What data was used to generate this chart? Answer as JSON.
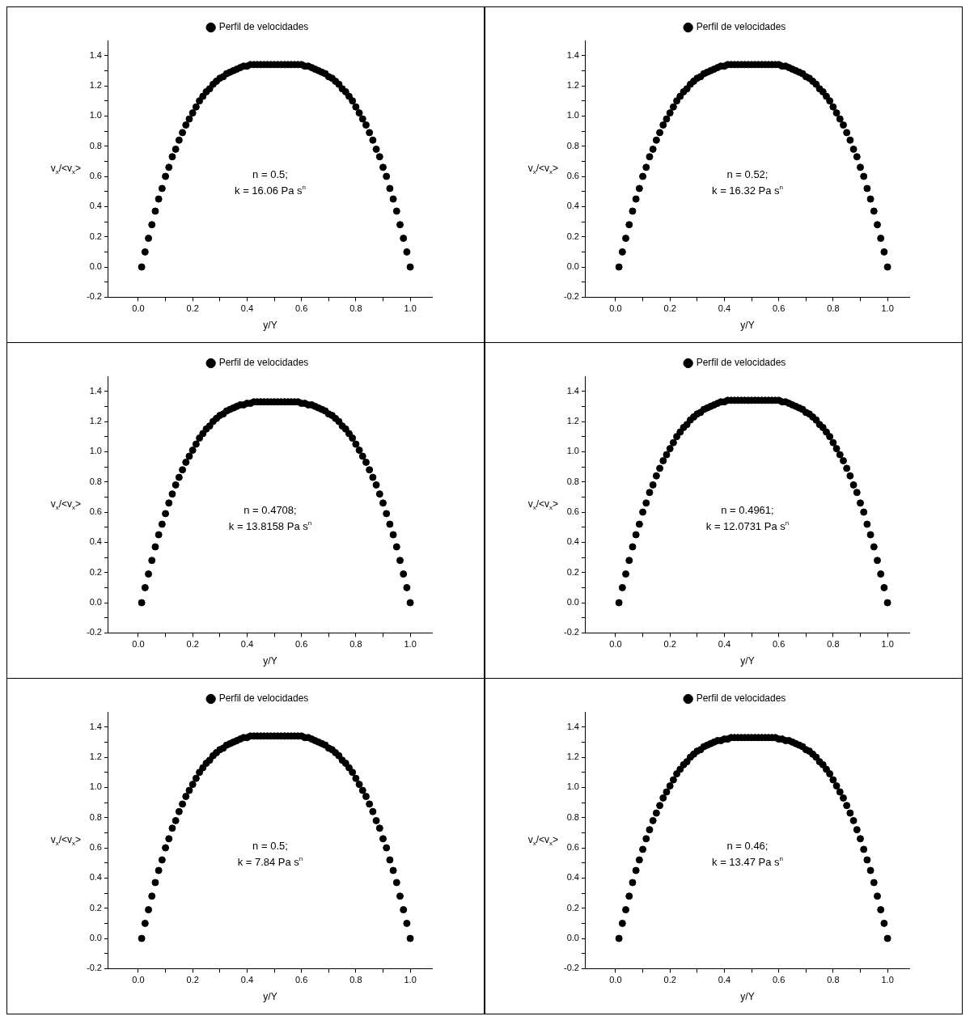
{
  "chart_data": [
    {
      "type": "scatter",
      "legend": "top",
      "marker": "circle",
      "xlabel": "y/Y",
      "ylabel": "v$_{x}$/<v$_{x}$>",
      "annotations": [
        "n = 0.5;",
        "k = 16.06 Pa s$^{n}$"
      ],
      "xlim": [
        -0.11,
        1.08
      ],
      "ylim": [
        -0.2,
        1.5
      ],
      "xticks": [
        {
          "value": 0,
          "label": "0.0"
        },
        {
          "value": 0.1,
          "label": null
        },
        0.2,
        {
          "value": 0.3,
          "label": null
        },
        0.4,
        {
          "value": 0.5,
          "label": null
        },
        0.6,
        {
          "value": 0.7,
          "label": null
        },
        0.8,
        {
          "value": 0.9,
          "label": null
        },
        {
          "value": 1,
          "label": "1.0"
        }
      ],
      "yticks": [
        -0.2,
        {
          "value": -0.1,
          "label": null
        },
        {
          "value": 0,
          "label": "0.0"
        },
        {
          "value": 0.1,
          "label": null
        },
        0.2,
        {
          "value": 0.3,
          "label": null
        },
        0.4,
        {
          "value": 0.5,
          "label": null
        },
        0.6,
        {
          "value": 0.7,
          "label": null
        },
        0.8,
        {
          "value": 0.9,
          "label": null
        },
        {
          "value": 1,
          "label": "1.0"
        },
        {
          "value": 1.1,
          "label": null
        },
        1.2,
        {
          "value": 1.3,
          "label": null
        },
        1.4
      ],
      "x": [
        0.0125,
        0.025,
        0.0375,
        0.05,
        0.0625,
        0.075,
        0.0875,
        0.1,
        0.1125,
        0.125,
        0.1375,
        0.15,
        0.1625,
        0.175,
        0.1875,
        0.2,
        0.2125,
        0.225,
        0.2375,
        0.25,
        0.2625,
        0.275,
        0.2875,
        0.3,
        0.3125,
        0.325,
        0.3375,
        0.35,
        0.3625,
        0.375,
        0.3875,
        0.4,
        0.4125,
        0.425,
        0.4375,
        0.45,
        0.4625,
        0.475,
        0.4875,
        0.5,
        0.5125,
        0.525,
        0.5375,
        0.55,
        0.5625,
        0.575,
        0.5875,
        0.6,
        0.6125,
        0.625,
        0.6375,
        0.65,
        0.6625,
        0.675,
        0.6875,
        0.7,
        0.7125,
        0.725,
        0.7375,
        0.75,
        0.7625,
        0.775,
        0.7875,
        0.8,
        0.8125,
        0.825,
        0.8375,
        0.85,
        0.8625,
        0.875,
        0.8875,
        0.9,
        0.9125,
        0.925,
        0.9375,
        0.95,
        0.9625,
        0.975,
        0.9875,
        1
      ],
      "series": [
        {
          "name": "Perfil de velocidades",
          "color": "#000000",
          "values": [
            0,
            0.1,
            0.19,
            0.28,
            0.37,
            0.45,
            0.52,
            0.6,
            0.66,
            0.73,
            0.78,
            0.84,
            0.89,
            0.94,
            0.98,
            1.02,
            1.06,
            1.1,
            1.13,
            1.16,
            1.18,
            1.21,
            1.23,
            1.25,
            1.26,
            1.28,
            1.29,
            1.3,
            1.31,
            1.32,
            1.33,
            1.33,
            1.34,
            1.34,
            1.34,
            1.34,
            1.34,
            1.34,
            1.34,
            1.34,
            1.34,
            1.34,
            1.34,
            1.34,
            1.34,
            1.34,
            1.34,
            1.34,
            1.33,
            1.33,
            1.32,
            1.31,
            1.3,
            1.29,
            1.28,
            1.26,
            1.25,
            1.23,
            1.21,
            1.18,
            1.16,
            1.13,
            1.1,
            1.06,
            1.02,
            0.98,
            0.94,
            0.89,
            0.84,
            0.78,
            0.73,
            0.66,
            0.6,
            0.52,
            0.45,
            0.37,
            0.28,
            0.19,
            0.1,
            0
          ]
        }
      ]
    },
    {
      "type": "scatter",
      "legend": "top",
      "marker": "circle",
      "xlabel": "y/Y",
      "ylabel": "v$_{x}$/<v$_{x}$>",
      "annotations": [
        "n = 0.52;",
        "k = 16.32 Pa s$^{n}$"
      ],
      "xlim": [
        -0.11,
        1.08
      ],
      "ylim": [
        -0.2,
        1.5
      ],
      "xticks": [
        {
          "value": 0,
          "label": "0.0"
        },
        {
          "value": 0.1,
          "label": null
        },
        0.2,
        {
          "value": 0.3,
          "label": null
        },
        0.4,
        {
          "value": 0.5,
          "label": null
        },
        0.6,
        {
          "value": 0.7,
          "label": null
        },
        0.8,
        {
          "value": 0.9,
          "label": null
        },
        {
          "value": 1,
          "label": "1.0"
        }
      ],
      "yticks": [
        -0.2,
        {
          "value": -0.1,
          "label": null
        },
        {
          "value": 0,
          "label": "0.0"
        },
        {
          "value": 0.1,
          "label": null
        },
        0.2,
        {
          "value": 0.3,
          "label": null
        },
        0.4,
        {
          "value": 0.5,
          "label": null
        },
        0.6,
        {
          "value": 0.7,
          "label": null
        },
        0.8,
        {
          "value": 0.9,
          "label": null
        },
        {
          "value": 1,
          "label": "1.0"
        },
        {
          "value": 1.1,
          "label": null
        },
        1.2,
        {
          "value": 1.3,
          "label": null
        },
        1.4
      ],
      "x": [
        0.0125,
        0.025,
        0.0375,
        0.05,
        0.0625,
        0.075,
        0.0875,
        0.1,
        0.1125,
        0.125,
        0.1375,
        0.15,
        0.1625,
        0.175,
        0.1875,
        0.2,
        0.2125,
        0.225,
        0.2375,
        0.25,
        0.2625,
        0.275,
        0.2875,
        0.3,
        0.3125,
        0.325,
        0.3375,
        0.35,
        0.3625,
        0.375,
        0.3875,
        0.4,
        0.4125,
        0.425,
        0.4375,
        0.45,
        0.4625,
        0.475,
        0.4875,
        0.5,
        0.5125,
        0.525,
        0.5375,
        0.55,
        0.5625,
        0.575,
        0.5875,
        0.6,
        0.6125,
        0.625,
        0.6375,
        0.65,
        0.6625,
        0.675,
        0.6875,
        0.7,
        0.7125,
        0.725,
        0.7375,
        0.75,
        0.7625,
        0.775,
        0.7875,
        0.8,
        0.8125,
        0.825,
        0.8375,
        0.85,
        0.8625,
        0.875,
        0.8875,
        0.9,
        0.9125,
        0.925,
        0.9375,
        0.95,
        0.9625,
        0.975,
        0.9875,
        1
      ],
      "series": [
        {
          "name": "Perfil de velocidades",
          "color": "#000000",
          "values": [
            0,
            0.1,
            0.19,
            0.28,
            0.37,
            0.45,
            0.52,
            0.6,
            0.66,
            0.73,
            0.78,
            0.84,
            0.89,
            0.94,
            0.98,
            1.02,
            1.06,
            1.1,
            1.13,
            1.16,
            1.18,
            1.21,
            1.23,
            1.25,
            1.26,
            1.28,
            1.29,
            1.3,
            1.31,
            1.32,
            1.33,
            1.33,
            1.34,
            1.34,
            1.34,
            1.34,
            1.34,
            1.34,
            1.34,
            1.34,
            1.34,
            1.34,
            1.34,
            1.34,
            1.34,
            1.34,
            1.34,
            1.34,
            1.33,
            1.33,
            1.32,
            1.31,
            1.3,
            1.29,
            1.28,
            1.26,
            1.25,
            1.23,
            1.21,
            1.18,
            1.16,
            1.13,
            1.1,
            1.06,
            1.02,
            0.98,
            0.94,
            0.89,
            0.84,
            0.78,
            0.73,
            0.66,
            0.6,
            0.52,
            0.45,
            0.37,
            0.28,
            0.19,
            0.1,
            0
          ]
        }
      ]
    },
    {
      "type": "scatter",
      "legend": "top",
      "marker": "circle",
      "xlabel": "y/Y",
      "ylabel": "v$_{x}$/<v$_{x}$>",
      "annotations": [
        "n = 0.4708;",
        "k = 13.8158 Pa s$^{n}$"
      ],
      "xlim": [
        -0.11,
        1.08
      ],
      "ylim": [
        -0.2,
        1.5
      ],
      "xticks": [
        {
          "value": 0,
          "label": "0.0"
        },
        {
          "value": 0.1,
          "label": null
        },
        0.2,
        {
          "value": 0.3,
          "label": null
        },
        0.4,
        {
          "value": 0.5,
          "label": null
        },
        0.6,
        {
          "value": 0.7,
          "label": null
        },
        0.8,
        {
          "value": 0.9,
          "label": null
        },
        {
          "value": 1,
          "label": "1.0"
        }
      ],
      "yticks": [
        -0.2,
        {
          "value": -0.1,
          "label": null
        },
        {
          "value": 0,
          "label": "0.0"
        },
        {
          "value": 0.1,
          "label": null
        },
        0.2,
        {
          "value": 0.3,
          "label": null
        },
        0.4,
        {
          "value": 0.5,
          "label": null
        },
        0.6,
        {
          "value": 0.7,
          "label": null
        },
        0.8,
        {
          "value": 0.9,
          "label": null
        },
        {
          "value": 1,
          "label": "1.0"
        },
        {
          "value": 1.1,
          "label": null
        },
        1.2,
        {
          "value": 1.3,
          "label": null
        },
        1.4
      ],
      "x": [
        0.0125,
        0.025,
        0.0375,
        0.05,
        0.0625,
        0.075,
        0.0875,
        0.1,
        0.1125,
        0.125,
        0.1375,
        0.15,
        0.1625,
        0.175,
        0.1875,
        0.2,
        0.2125,
        0.225,
        0.2375,
        0.25,
        0.2625,
        0.275,
        0.2875,
        0.3,
        0.3125,
        0.325,
        0.3375,
        0.35,
        0.3625,
        0.375,
        0.3875,
        0.4,
        0.4125,
        0.425,
        0.4375,
        0.45,
        0.4625,
        0.475,
        0.4875,
        0.5,
        0.5125,
        0.525,
        0.5375,
        0.55,
        0.5625,
        0.575,
        0.5875,
        0.6,
        0.6125,
        0.625,
        0.6375,
        0.65,
        0.6625,
        0.675,
        0.6875,
        0.7,
        0.7125,
        0.725,
        0.7375,
        0.75,
        0.7625,
        0.775,
        0.7875,
        0.8,
        0.8125,
        0.825,
        0.8375,
        0.85,
        0.8625,
        0.875,
        0.8875,
        0.9,
        0.9125,
        0.925,
        0.9375,
        0.95,
        0.9625,
        0.975,
        0.9875,
        1
      ],
      "series": [
        {
          "name": "Perfil de velocidades",
          "color": "#000000",
          "values": [
            0,
            0.1,
            0.19,
            0.28,
            0.37,
            0.45,
            0.52,
            0.59,
            0.66,
            0.72,
            0.78,
            0.83,
            0.88,
            0.93,
            0.97,
            1.01,
            1.05,
            1.09,
            1.12,
            1.15,
            1.17,
            1.2,
            1.22,
            1.24,
            1.25,
            1.27,
            1.28,
            1.29,
            1.3,
            1.31,
            1.31,
            1.32,
            1.32,
            1.33,
            1.33,
            1.33,
            1.33,
            1.33,
            1.33,
            1.33,
            1.33,
            1.33,
            1.33,
            1.33,
            1.33,
            1.33,
            1.33,
            1.32,
            1.32,
            1.31,
            1.31,
            1.3,
            1.29,
            1.28,
            1.27,
            1.25,
            1.24,
            1.22,
            1.2,
            1.17,
            1.15,
            1.12,
            1.09,
            1.05,
            1.01,
            0.97,
            0.93,
            0.88,
            0.83,
            0.78,
            0.72,
            0.66,
            0.59,
            0.52,
            0.45,
            0.37,
            0.28,
            0.19,
            0.1,
            0
          ]
        }
      ]
    },
    {
      "type": "scatter",
      "legend": "top",
      "marker": "circle",
      "xlabel": "y/Y",
      "ylabel": "v$_{x}$/<v$_{x}$>",
      "annotations": [
        "n = 0.4961;",
        "k = 12.0731 Pa s$^{n}$"
      ],
      "xlim": [
        -0.11,
        1.08
      ],
      "ylim": [
        -0.2,
        1.5
      ],
      "xticks": [
        {
          "value": 0,
          "label": "0.0"
        },
        {
          "value": 0.1,
          "label": null
        },
        0.2,
        {
          "value": 0.3,
          "label": null
        },
        0.4,
        {
          "value": 0.5,
          "label": null
        },
        0.6,
        {
          "value": 0.7,
          "label": null
        },
        0.8,
        {
          "value": 0.9,
          "label": null
        },
        {
          "value": 1,
          "label": "1.0"
        }
      ],
      "yticks": [
        -0.2,
        {
          "value": -0.1,
          "label": null
        },
        {
          "value": 0,
          "label": "0.0"
        },
        {
          "value": 0.1,
          "label": null
        },
        0.2,
        {
          "value": 0.3,
          "label": null
        },
        0.4,
        {
          "value": 0.5,
          "label": null
        },
        0.6,
        {
          "value": 0.7,
          "label": null
        },
        0.8,
        {
          "value": 0.9,
          "label": null
        },
        {
          "value": 1,
          "label": "1.0"
        },
        {
          "value": 1.1,
          "label": null
        },
        1.2,
        {
          "value": 1.3,
          "label": null
        },
        1.4
      ],
      "x": [
        0.0125,
        0.025,
        0.0375,
        0.05,
        0.0625,
        0.075,
        0.0875,
        0.1,
        0.1125,
        0.125,
        0.1375,
        0.15,
        0.1625,
        0.175,
        0.1875,
        0.2,
        0.2125,
        0.225,
        0.2375,
        0.25,
        0.2625,
        0.275,
        0.2875,
        0.3,
        0.3125,
        0.325,
        0.3375,
        0.35,
        0.3625,
        0.375,
        0.3875,
        0.4,
        0.4125,
        0.425,
        0.4375,
        0.45,
        0.4625,
        0.475,
        0.4875,
        0.5,
        0.5125,
        0.525,
        0.5375,
        0.55,
        0.5625,
        0.575,
        0.5875,
        0.6,
        0.6125,
        0.625,
        0.6375,
        0.65,
        0.6625,
        0.675,
        0.6875,
        0.7,
        0.7125,
        0.725,
        0.7375,
        0.75,
        0.7625,
        0.775,
        0.7875,
        0.8,
        0.8125,
        0.825,
        0.8375,
        0.85,
        0.8625,
        0.875,
        0.8875,
        0.9,
        0.9125,
        0.925,
        0.9375,
        0.95,
        0.9625,
        0.975,
        0.9875,
        1
      ],
      "series": [
        {
          "name": "Perfil de velocidades",
          "color": "#000000",
          "values": [
            0,
            0.1,
            0.19,
            0.28,
            0.37,
            0.45,
            0.52,
            0.6,
            0.66,
            0.73,
            0.78,
            0.84,
            0.89,
            0.94,
            0.98,
            1.02,
            1.06,
            1.1,
            1.13,
            1.16,
            1.18,
            1.21,
            1.23,
            1.25,
            1.26,
            1.28,
            1.29,
            1.3,
            1.31,
            1.32,
            1.33,
            1.33,
            1.34,
            1.34,
            1.34,
            1.34,
            1.34,
            1.34,
            1.34,
            1.34,
            1.34,
            1.34,
            1.34,
            1.34,
            1.34,
            1.34,
            1.34,
            1.34,
            1.33,
            1.33,
            1.32,
            1.31,
            1.3,
            1.29,
            1.28,
            1.26,
            1.25,
            1.23,
            1.21,
            1.18,
            1.16,
            1.13,
            1.1,
            1.06,
            1.02,
            0.98,
            0.94,
            0.89,
            0.84,
            0.78,
            0.73,
            0.66,
            0.6,
            0.52,
            0.45,
            0.37,
            0.28,
            0.19,
            0.1,
            0
          ]
        }
      ]
    },
    {
      "type": "scatter",
      "legend": "top",
      "marker": "circle",
      "xlabel": "y/Y",
      "ylabel": "v$_{x}$/<v$_{x}$>",
      "annotations": [
        "n = 0.5;",
        "k = 7.84 Pa s$^{n}$"
      ],
      "xlim": [
        -0.11,
        1.08
      ],
      "ylim": [
        -0.2,
        1.5
      ],
      "xticks": [
        {
          "value": 0,
          "label": "0.0"
        },
        {
          "value": 0.1,
          "label": null
        },
        0.2,
        {
          "value": 0.3,
          "label": null
        },
        0.4,
        {
          "value": 0.5,
          "label": null
        },
        0.6,
        {
          "value": 0.7,
          "label": null
        },
        0.8,
        {
          "value": 0.9,
          "label": null
        },
        {
          "value": 1,
          "label": "1.0"
        }
      ],
      "yticks": [
        -0.2,
        {
          "value": -0.1,
          "label": null
        },
        {
          "value": 0,
          "label": "0.0"
        },
        {
          "value": 0.1,
          "label": null
        },
        0.2,
        {
          "value": 0.3,
          "label": null
        },
        0.4,
        {
          "value": 0.5,
          "label": null
        },
        0.6,
        {
          "value": 0.7,
          "label": null
        },
        0.8,
        {
          "value": 0.9,
          "label": null
        },
        {
          "value": 1,
          "label": "1.0"
        },
        {
          "value": 1.1,
          "label": null
        },
        1.2,
        {
          "value": 1.3,
          "label": null
        },
        1.4
      ],
      "x": [
        0.0125,
        0.025,
        0.0375,
        0.05,
        0.0625,
        0.075,
        0.0875,
        0.1,
        0.1125,
        0.125,
        0.1375,
        0.15,
        0.1625,
        0.175,
        0.1875,
        0.2,
        0.2125,
        0.225,
        0.2375,
        0.25,
        0.2625,
        0.275,
        0.2875,
        0.3,
        0.3125,
        0.325,
        0.3375,
        0.35,
        0.3625,
        0.375,
        0.3875,
        0.4,
        0.4125,
        0.425,
        0.4375,
        0.45,
        0.4625,
        0.475,
        0.4875,
        0.5,
        0.5125,
        0.525,
        0.5375,
        0.55,
        0.5625,
        0.575,
        0.5875,
        0.6,
        0.6125,
        0.625,
        0.6375,
        0.65,
        0.6625,
        0.675,
        0.6875,
        0.7,
        0.7125,
        0.725,
        0.7375,
        0.75,
        0.7625,
        0.775,
        0.7875,
        0.8,
        0.8125,
        0.825,
        0.8375,
        0.85,
        0.8625,
        0.875,
        0.8875,
        0.9,
        0.9125,
        0.925,
        0.9375,
        0.95,
        0.9625,
        0.975,
        0.9875,
        1
      ],
      "series": [
        {
          "name": "Perfil de velocidades",
          "color": "#000000",
          "values": [
            0,
            0.1,
            0.19,
            0.28,
            0.37,
            0.45,
            0.52,
            0.6,
            0.66,
            0.73,
            0.78,
            0.84,
            0.89,
            0.94,
            0.98,
            1.02,
            1.06,
            1.1,
            1.13,
            1.16,
            1.18,
            1.21,
            1.23,
            1.25,
            1.26,
            1.28,
            1.29,
            1.3,
            1.31,
            1.32,
            1.33,
            1.33,
            1.34,
            1.34,
            1.34,
            1.34,
            1.34,
            1.34,
            1.34,
            1.34,
            1.34,
            1.34,
            1.34,
            1.34,
            1.34,
            1.34,
            1.34,
            1.34,
            1.33,
            1.33,
            1.32,
            1.31,
            1.3,
            1.29,
            1.28,
            1.26,
            1.25,
            1.23,
            1.21,
            1.18,
            1.16,
            1.13,
            1.1,
            1.06,
            1.02,
            0.98,
            0.94,
            0.89,
            0.84,
            0.78,
            0.73,
            0.66,
            0.6,
            0.52,
            0.45,
            0.37,
            0.28,
            0.19,
            0.1,
            0
          ]
        }
      ]
    },
    {
      "type": "scatter",
      "legend": "top",
      "marker": "circle",
      "xlabel": "y/Y",
      "ylabel": "v$_{x}$/<v$_{x}$>",
      "annotations": [
        "n = 0.46;",
        "k = 13.47 Pa s$^{n}$"
      ],
      "xlim": [
        -0.11,
        1.08
      ],
      "ylim": [
        -0.2,
        1.5
      ],
      "xticks": [
        {
          "value": 0,
          "label": "0.0"
        },
        {
          "value": 0.1,
          "label": null
        },
        0.2,
        {
          "value": 0.3,
          "label": null
        },
        0.4,
        {
          "value": 0.5,
          "label": null
        },
        0.6,
        {
          "value": 0.7,
          "label": null
        },
        0.8,
        {
          "value": 0.9,
          "label": null
        },
        {
          "value": 1,
          "label": "1.0"
        }
      ],
      "yticks": [
        -0.2,
        {
          "value": -0.1,
          "label": null
        },
        {
          "value": 0,
          "label": "0.0"
        },
        {
          "value": 0.1,
          "label": null
        },
        0.2,
        {
          "value": 0.3,
          "label": null
        },
        0.4,
        {
          "value": 0.5,
          "label": null
        },
        0.6,
        {
          "value": 0.7,
          "label": null
        },
        0.8,
        {
          "value": 0.9,
          "label": null
        },
        {
          "value": 1,
          "label": "1.0"
        },
        {
          "value": 1.1,
          "label": null
        },
        1.2,
        {
          "value": 1.3,
          "label": null
        },
        1.4
      ],
      "x": [
        0.0125,
        0.025,
        0.0375,
        0.05,
        0.0625,
        0.075,
        0.0875,
        0.1,
        0.1125,
        0.125,
        0.1375,
        0.15,
        0.1625,
        0.175,
        0.1875,
        0.2,
        0.2125,
        0.225,
        0.2375,
        0.25,
        0.2625,
        0.275,
        0.2875,
        0.3,
        0.3125,
        0.325,
        0.3375,
        0.35,
        0.3625,
        0.375,
        0.3875,
        0.4,
        0.4125,
        0.425,
        0.4375,
        0.45,
        0.4625,
        0.475,
        0.4875,
        0.5,
        0.5125,
        0.525,
        0.5375,
        0.55,
        0.5625,
        0.575,
        0.5875,
        0.6,
        0.6125,
        0.625,
        0.6375,
        0.65,
        0.6625,
        0.675,
        0.6875,
        0.7,
        0.7125,
        0.725,
        0.7375,
        0.75,
        0.7625,
        0.775,
        0.7875,
        0.8,
        0.8125,
        0.825,
        0.8375,
        0.85,
        0.8625,
        0.875,
        0.8875,
        0.9,
        0.9125,
        0.925,
        0.9375,
        0.95,
        0.9625,
        0.975,
        0.9875,
        1
      ],
      "series": [
        {
          "name": "Perfil de velocidades",
          "color": "#000000",
          "values": [
            0,
            0.1,
            0.19,
            0.28,
            0.37,
            0.45,
            0.52,
            0.59,
            0.66,
            0.72,
            0.78,
            0.83,
            0.88,
            0.93,
            0.97,
            1.01,
            1.05,
            1.09,
            1.12,
            1.15,
            1.17,
            1.2,
            1.22,
            1.24,
            1.25,
            1.27,
            1.28,
            1.29,
            1.3,
            1.31,
            1.31,
            1.32,
            1.32,
            1.33,
            1.33,
            1.33,
            1.33,
            1.33,
            1.33,
            1.33,
            1.33,
            1.33,
            1.33,
            1.33,
            1.33,
            1.33,
            1.33,
            1.32,
            1.32,
            1.31,
            1.31,
            1.3,
            1.29,
            1.28,
            1.27,
            1.25,
            1.24,
            1.22,
            1.2,
            1.17,
            1.15,
            1.12,
            1.09,
            1.05,
            1.01,
            0.97,
            0.93,
            0.88,
            0.83,
            0.78,
            0.72,
            0.66,
            0.59,
            0.52,
            0.45,
            0.37,
            0.28,
            0.19,
            0.1,
            0
          ]
        }
      ]
    }
  ]
}
